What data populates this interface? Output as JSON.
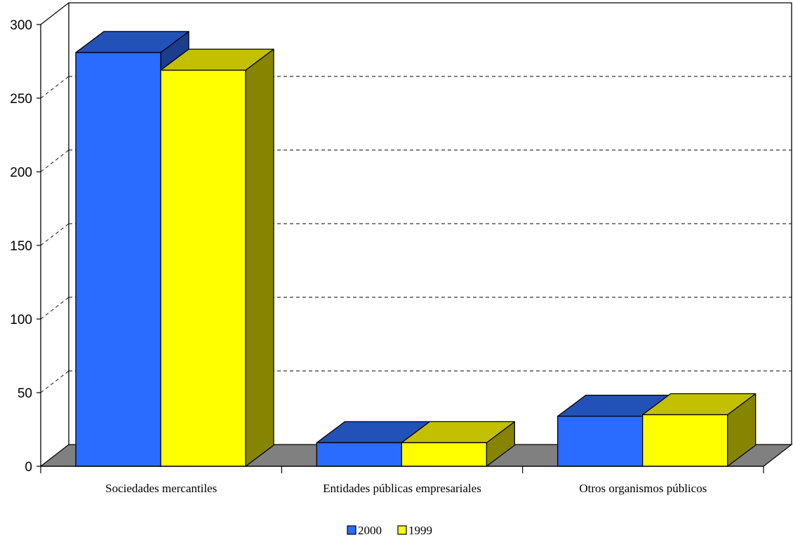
{
  "chart_data": {
    "type": "bar",
    "title": "",
    "xlabel": "",
    "ylabel": "",
    "ylim": [
      0,
      300
    ],
    "yticks": [
      0,
      50,
      100,
      150,
      200,
      250,
      300
    ],
    "grid": true,
    "legend_position": "bottom",
    "categories": [
      "Sociedades mercantiles",
      "Entidades públicas empresariales",
      "Otros organismos públicos"
    ],
    "series": [
      {
        "name": "2000",
        "values": [
          281,
          16,
          34
        ],
        "color": "#2a6cff",
        "top_color": "#2252b8",
        "side_color": "#1a3e8c"
      },
      {
        "name": "1999",
        "values": [
          269,
          16,
          35
        ],
        "color": "#ffff00",
        "top_color": "#c2c000",
        "side_color": "#868400"
      }
    ],
    "floor_color": "#808080"
  }
}
